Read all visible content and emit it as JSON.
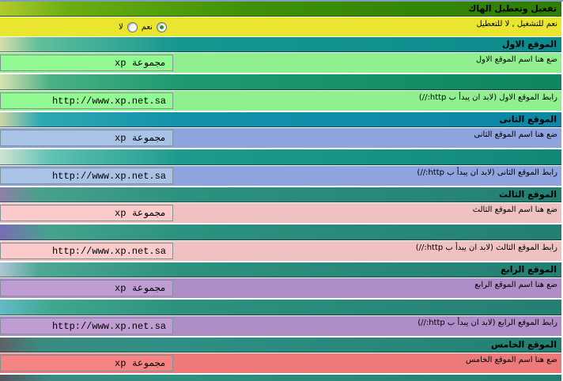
{
  "colors": {
    "page-bg": "#ffffff",
    "top-border": "#7f9db9",
    "topbar-accent": "#b2ca2e",
    "topbar-main": "#3f9007",
    "topbar-dark": "#2e7d05",
    "toggle-bg": "#eae630",
    "radio-dot": "#2f8f1f",
    "input-border": "#7f9494"
  },
  "main_header": {
    "label": "تفعيل وتعطيل الهاك"
  },
  "toggle_row": {
    "label": "نعم للتشغيل , لا للتعطيل",
    "options": [
      {
        "label": "نعم",
        "selected": true
      },
      {
        "label": "لا",
        "selected": false
      }
    ]
  },
  "sites": [
    {
      "header": "الموقع الاول",
      "name_label": "ضع هنا اسم الموقع الاول",
      "name_value": "مجموعة xp",
      "link_label": "رابط الموقع الاول (لابد ان يبدأ ب http://)",
      "link_value": "http://www.xp.net.sa",
      "colors": {
        "hdr1": "#d6dcae",
        "hdr2": "#5fbf9b",
        "hdrm": "#149690",
        "hdrd": "#0d8a8e",
        "sep1": "#d8e2b2",
        "sep2": "#49b184",
        "sepm": "#1d9b6f",
        "sepd": "#0e8660",
        "row": "#90f090",
        "input": "#93fa93"
      }
    },
    {
      "header": "الموقع الثانى",
      "name_label": "ضع هنا اسم الموقع الثانى",
      "name_value": "مجموعة xp",
      "link_label": "رابط الموقع الثانى (لابد ان يبدأ ب http://)",
      "link_value": "http://www.xp.net.sa",
      "colors": {
        "hdr1": "#ccd6a4",
        "hdr2": "#2fa9b2",
        "hdrm": "#1291aa",
        "hdrd": "#0e85a5",
        "sep1": "#cfe3cf",
        "sep2": "#5ec2b4",
        "sepm": "#1e9b8e",
        "sepd": "#108878",
        "row": "#8fa3df",
        "input": "#a9c3e7"
      }
    },
    {
      "header": "الموقع الثالث",
      "name_label": "ضع هنا اسم الموقع الثالث",
      "name_value": "مجموعة xp",
      "link_label": "رابط الموقع الثالث (لابد ان يبدأ ب http://)",
      "link_value": "http://www.xp.net.sa",
      "colors": {
        "hdr1": "#8f7fa6",
        "hdr2": "#49a18c",
        "hdrm": "#2e9180",
        "hdrd": "#247f73",
        "sep1": "#7a6cb4",
        "sep2": "#46a38d",
        "sepm": "#2e9180",
        "sepd": "#247f73",
        "row": "#f0c1c1",
        "input": "#fbcbcb"
      }
    },
    {
      "header": "الموقع الرابع",
      "name_label": "ضع هنا اسم الموقع الرابع",
      "name_value": "مجموعة xp",
      "link_label": "رابط الموقع الرابع (لابد ان يبدأ ب http://)",
      "link_value": "http://www.xp.net.sa",
      "colors": {
        "hdr1": "#aec6d6",
        "hdr2": "#4fa795",
        "hdrm": "#2e9180",
        "hdrd": "#247f73",
        "sep1": "#63bac6",
        "sep2": "#41a78f",
        "sepm": "#2e9180",
        "sepd": "#247f73",
        "row": "#af8dc7",
        "input": "#bf9cd3"
      }
    },
    {
      "header": "الموقع الخامس",
      "name_label": "ضع هنا اسم الموقع الخامس",
      "name_value": "مجموعة xp",
      "colors": {
        "hdr1": "#5f6068",
        "hdr2": "#3a8b81",
        "hdrm": "#2e8f84",
        "hdrd": "#247f73",
        "sep1": "#55565f",
        "sep2": "#3a8b81",
        "sepm": "#2e9180",
        "sepd": "#247f73",
        "row": "#ee7979",
        "input": "#f78484"
      }
    }
  ]
}
